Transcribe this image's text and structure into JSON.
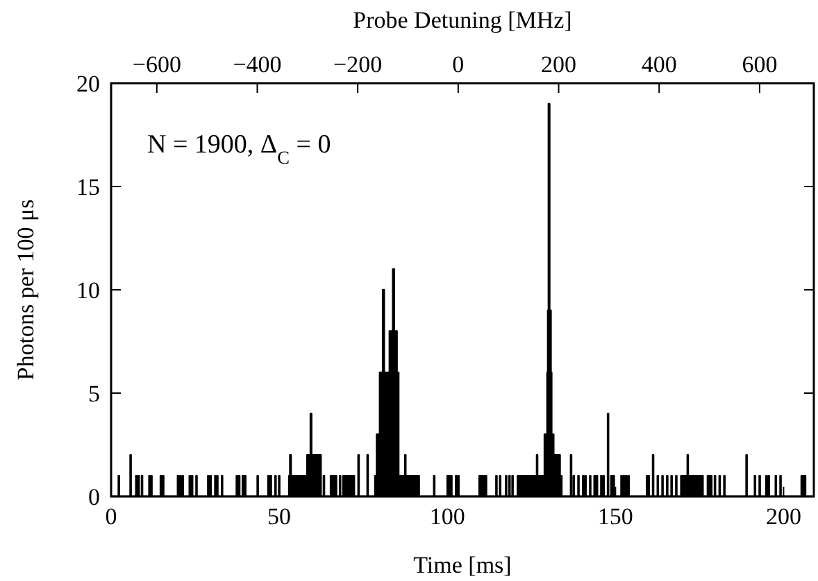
{
  "chart_data": {
    "type": "histogram",
    "xlabel": "Time [ms]",
    "ylabel": "Photons per 100 μs",
    "x2label": "Probe Detuning [MHz]",
    "annotations": [
      "N = 1900, Δ$_{C}$ = 0"
    ],
    "color": "#000000",
    "grid": false,
    "xlim": [
      0,
      209
    ],
    "xticks": [
      0,
      50,
      100,
      150,
      200
    ],
    "ylim": [
      0,
      20
    ],
    "yticks": [
      0,
      5,
      10,
      15,
      20
    ],
    "x2lim": [
      -691,
      708
    ],
    "x2ticks": [
      {
        "value": -600,
        "label": "−600"
      },
      {
        "value": -400,
        "label": "−400"
      },
      {
        "value": -200,
        "label": "−200"
      },
      0,
      200,
      400,
      600
    ],
    "bins": [
      0,
      2.2,
      2.4,
      5.7,
      5.9,
      7.4,
      7.6,
      8.1,
      8.3,
      9.1,
      9.3,
      11.3,
      11.5,
      11.9,
      12.1,
      14.7,
      14.9,
      15.4,
      15.6,
      19.8,
      20.0,
      20.5,
      20.7,
      21.2,
      21.4,
      23.3,
      23.5,
      24.0,
      24.2,
      25.3,
      25.5,
      28.8,
      29.0,
      29.5,
      29.7,
      30.9,
      31.1,
      31.5,
      31.7,
      32.9,
      33.1,
      37.3,
      37.5,
      38.0,
      38.2,
      39.1,
      39.3,
      39.8,
      40.0,
      43.5,
      43.7,
      46.7,
      46.9,
      47.4,
      47.6,
      48.8,
      49.0,
      49.9,
      50.1,
      52.9,
      53.2,
      53.5,
      58.3,
      59.3,
      59.6,
      62.4,
      63.2,
      63.4,
      65.3,
      67.0,
      68.0,
      68.2,
      69.0,
      72.3,
      73.5,
      73.7,
      76.2,
      76.4,
      78.5,
      79.0,
      79.9,
      80.8,
      81.2,
      82.8,
      83.8,
      84.2,
      85.0,
      85.5,
      87.4,
      87.6,
      91.6,
      96.0,
      96.2,
      100.0,
      100.2,
      100.5,
      100.7,
      101.1,
      101.3,
      102.5,
      102.7,
      103.2,
      103.4,
      109.5,
      111.6,
      114.5,
      114.7,
      115.6,
      115.8,
      117.4,
      117.6,
      118.4,
      118.6,
      119.3,
      119.5,
      120.9,
      126.6,
      126.8,
      128.9,
      129.7,
      129.9,
      130.1,
      130.4,
      130.8,
      131.0,
      131.6,
      133.5,
      134.0,
      136.7,
      136.9,
      137.5,
      137.7,
      138.9,
      139.1,
      140.3,
      140.5,
      141.0,
      141.2,
      142.4,
      142.6,
      143.7,
      143.9,
      144.4,
      144.6,
      145.7,
      145.9,
      146.4,
      146.6,
      147.7,
      147.9,
      148.7,
      148.9,
      149.4,
      149.6,
      151.7,
      151.9,
      152.4,
      152.6,
      153.1,
      153.3,
      153.8,
      154.0,
      159.3,
      160.0,
      161.1,
      161.3,
      162.5,
      162.7,
      163.9,
      164.1,
      165.3,
      165.5,
      166.6,
      166.8,
      168.0,
      168.2,
      169.5,
      171.4,
      171.6,
      176.0,
      177.4,
      178.6,
      179.5,
      179.7,
      180.9,
      181.1,
      182.3,
      182.5,
      188.9,
      189.1,
      191.4,
      191.6,
      192.8,
      193.0,
      194.8,
      195.0,
      195.5,
      195.7,
      197.6,
      197.8,
      199.0,
      199.2,
      205.3,
      206.5,
      209
    ],
    "values": [
      0,
      1,
      0,
      2,
      0,
      1,
      0,
      1,
      0,
      1,
      0,
      1,
      0,
      1,
      0,
      1,
      0,
      1,
      0,
      1,
      0,
      1,
      0,
      1,
      0,
      1,
      0,
      1,
      0,
      1,
      0,
      1,
      0,
      1,
      0,
      1,
      0,
      1,
      0,
      1,
      0,
      1,
      0,
      1,
      0,
      1,
      0,
      1,
      0,
      1,
      0,
      1,
      0,
      1,
      0,
      1,
      0,
      1,
      0,
      1,
      2,
      1,
      2,
      4,
      2,
      0,
      1,
      0,
      1,
      0,
      1,
      0,
      1,
      0,
      2,
      0,
      2,
      0,
      1,
      3,
      6,
      10,
      6,
      8,
      11,
      8,
      6,
      1,
      2,
      1,
      0,
      1,
      0,
      1,
      0,
      1,
      0,
      1,
      0,
      1,
      0,
      1,
      0,
      1,
      0,
      1,
      0,
      1,
      0,
      1,
      0,
      1,
      0,
      1,
      0,
      1,
      2,
      1,
      3,
      6,
      9,
      19,
      9,
      6,
      3,
      2,
      1,
      0,
      2,
      0,
      1,
      0,
      1,
      0,
      1,
      0,
      1,
      0,
      1,
      0,
      1,
      0,
      1,
      0,
      1,
      0,
      1,
      0,
      4,
      0,
      1,
      0,
      1,
      0,
      1,
      0,
      1,
      0,
      1,
      0,
      1,
      0,
      1,
      0,
      2,
      0,
      1,
      0,
      1,
      0,
      1,
      0,
      1,
      0,
      1,
      0,
      1,
      2,
      1,
      0,
      1,
      0,
      1,
      0,
      1,
      0,
      1,
      0,
      2,
      0,
      1,
      0,
      1,
      0,
      1,
      0,
      1,
      0,
      1,
      0,
      1,
      0,
      1,
      0
    ]
  }
}
